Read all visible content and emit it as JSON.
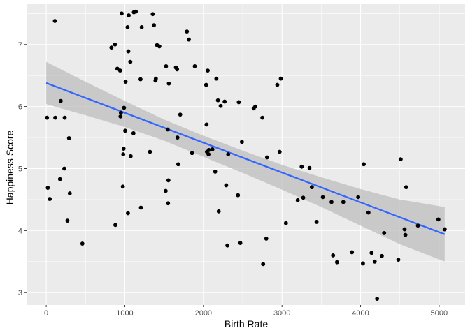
{
  "chart_data": {
    "type": "scatter",
    "title": "",
    "xlabel": "Birth Rate",
    "ylabel": "Happiness Score",
    "xlim": [
      -250,
      5330
    ],
    "ylim": [
      2.8,
      7.65
    ],
    "x_ticks": [
      0,
      1000,
      2000,
      3000,
      4000,
      5000
    ],
    "y_ticks": [
      3,
      4,
      5,
      6,
      7
    ],
    "x_minor": [
      500,
      1500,
      2500,
      3500,
      4500
    ],
    "y_minor": [
      3.5,
      4.5,
      5.5,
      6.5,
      7.5
    ],
    "grid": true,
    "legend": "none",
    "colors": {
      "panel": "#ebebeb",
      "grid": "#ffffff",
      "point": "#000000",
      "line": "#3366ff",
      "band": "#bdbdbd"
    },
    "points": [
      [
        10,
        5.82
      ],
      [
        20,
        4.69
      ],
      [
        45,
        4.51
      ],
      [
        110,
        7.38
      ],
      [
        115,
        5.82
      ],
      [
        175,
        4.83
      ],
      [
        185,
        6.09
      ],
      [
        230,
        5.0
      ],
      [
        235,
        5.82
      ],
      [
        270,
        4.16
      ],
      [
        290,
        5.49
      ],
      [
        300,
        4.6
      ],
      [
        460,
        3.79
      ],
      [
        830,
        6.95
      ],
      [
        875,
        7.0
      ],
      [
        880,
        4.09
      ],
      [
        905,
        6.61
      ],
      [
        940,
        6.58
      ],
      [
        945,
        5.84
      ],
      [
        950,
        5.9
      ],
      [
        960,
        7.5
      ],
      [
        975,
        4.71
      ],
      [
        980,
        5.23
      ],
      [
        985,
        5.32
      ],
      [
        990,
        5.98
      ],
      [
        1005,
        5.61
      ],
      [
        1010,
        6.4
      ],
      [
        1035,
        7.28
      ],
      [
        1040,
        4.28
      ],
      [
        1045,
        6.89
      ],
      [
        1050,
        7.47
      ],
      [
        1070,
        6.72
      ],
      [
        1075,
        5.2
      ],
      [
        1110,
        5.57
      ],
      [
        1115,
        7.52
      ],
      [
        1140,
        7.53
      ],
      [
        1200,
        6.44
      ],
      [
        1205,
        4.37
      ],
      [
        1215,
        7.28
      ],
      [
        1320,
        5.27
      ],
      [
        1355,
        7.49
      ],
      [
        1370,
        7.31
      ],
      [
        1390,
        6.42
      ],
      [
        1395,
        6.45
      ],
      [
        1410,
        6.99
      ],
      [
        1440,
        6.97
      ],
      [
        1520,
        4.64
      ],
      [
        1525,
        6.65
      ],
      [
        1545,
        5.63
      ],
      [
        1550,
        4.44
      ],
      [
        1555,
        4.81
      ],
      [
        1560,
        6.37
      ],
      [
        1650,
        6.63
      ],
      [
        1665,
        6.6
      ],
      [
        1670,
        5.5
      ],
      [
        1680,
        5.07
      ],
      [
        1705,
        5.87
      ],
      [
        1790,
        7.21
      ],
      [
        1815,
        7.08
      ],
      [
        1855,
        5.25
      ],
      [
        1890,
        6.65
      ],
      [
        2035,
        6.35
      ],
      [
        2040,
        5.71
      ],
      [
        2045,
        5.27
      ],
      [
        2055,
        6.58
      ],
      [
        2065,
        5.23
      ],
      [
        2070,
        5.3
      ],
      [
        2115,
        5.31
      ],
      [
        2150,
        4.95
      ],
      [
        2165,
        6.45
      ],
      [
        2185,
        6.1
      ],
      [
        2195,
        4.31
      ],
      [
        2220,
        6.01
      ],
      [
        2270,
        6.08
      ],
      [
        2290,
        4.73
      ],
      [
        2305,
        3.76
      ],
      [
        2315,
        5.23
      ],
      [
        2440,
        4.57
      ],
      [
        2450,
        6.07
      ],
      [
        2470,
        3.8
      ],
      [
        2490,
        5.43
      ],
      [
        2640,
        5.97
      ],
      [
        2660,
        6.0
      ],
      [
        2750,
        5.82
      ],
      [
        2760,
        3.46
      ],
      [
        2800,
        3.87
      ],
      [
        2810,
        5.18
      ],
      [
        2940,
        6.35
      ],
      [
        2970,
        5.27
      ],
      [
        2985,
        6.45
      ],
      [
        3050,
        4.12
      ],
      [
        3200,
        4.49
      ],
      [
        3250,
        5.03
      ],
      [
        3270,
        4.53
      ],
      [
        3350,
        5.01
      ],
      [
        3380,
        4.7
      ],
      [
        3440,
        4.14
      ],
      [
        3520,
        4.54
      ],
      [
        3630,
        4.46
      ],
      [
        3650,
        3.6
      ],
      [
        3700,
        3.49
      ],
      [
        3780,
        4.46
      ],
      [
        3890,
        3.65
      ],
      [
        3970,
        4.54
      ],
      [
        4030,
        3.47
      ],
      [
        4040,
        5.07
      ],
      [
        4100,
        4.29
      ],
      [
        4140,
        3.64
      ],
      [
        4180,
        3.5
      ],
      [
        4210,
        2.9
      ],
      [
        4270,
        3.59
      ],
      [
        4300,
        3.96
      ],
      [
        4480,
        3.53
      ],
      [
        4510,
        5.15
      ],
      [
        4560,
        4.02
      ],
      [
        4570,
        3.93
      ],
      [
        4580,
        4.7
      ],
      [
        4730,
        4.08
      ],
      [
        4990,
        4.18
      ],
      [
        5070,
        4.02
      ]
    ],
    "smooth_line": {
      "x": [
        0,
        5070
      ],
      "y": [
        6.38,
        3.94
      ]
    },
    "confidence_band": {
      "x": [
        0,
        500,
        1000,
        1500,
        2000,
        2500,
        3000,
        3500,
        4000,
        4500,
        5070
      ],
      "upper": [
        6.72,
        6.4,
        6.09,
        5.79,
        5.53,
        5.29,
        5.06,
        4.86,
        4.67,
        4.5,
        4.38
      ],
      "lower": [
        6.04,
        5.86,
        5.67,
        5.45,
        5.19,
        4.93,
        4.66,
        4.38,
        4.08,
        3.78,
        3.5
      ]
    }
  }
}
